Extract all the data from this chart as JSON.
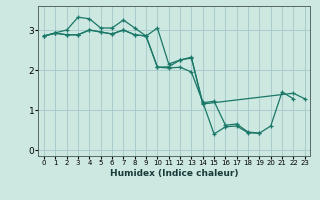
{
  "xlabel": "Humidex (Indice chaleur)",
  "bg_color": "#cce8e0",
  "grid_color": "#aacccc",
  "line_color": "#1a7868",
  "xlim": [
    -0.5,
    23.5
  ],
  "ylim": [
    -0.15,
    3.6
  ],
  "yticks": [
    0,
    1,
    2,
    3
  ],
  "xticks": [
    0,
    1,
    2,
    3,
    4,
    5,
    6,
    7,
    8,
    9,
    10,
    11,
    12,
    13,
    14,
    15,
    16,
    17,
    18,
    19,
    20,
    21,
    22,
    23
  ],
  "lines": [
    {
      "x": [
        0,
        1,
        2,
        3,
        4,
        5,
        6,
        7,
        8,
        9,
        10,
        11,
        12,
        13,
        14,
        15,
        16,
        17,
        18,
        19,
        20,
        21,
        22
      ],
      "y": [
        2.85,
        2.93,
        3.0,
        3.32,
        3.28,
        3.05,
        3.05,
        3.25,
        3.05,
        2.85,
        2.07,
        2.08,
        2.25,
        2.3,
        1.18,
        1.22,
        0.62,
        0.65,
        0.45,
        0.42,
        0.6,
        1.45,
        1.28
      ]
    },
    {
      "x": [
        0,
        1,
        2,
        3,
        4,
        5,
        6,
        7,
        8,
        9,
        10,
        11,
        12,
        13,
        14,
        15,
        16,
        17,
        18,
        19
      ],
      "y": [
        2.85,
        2.92,
        2.88,
        2.88,
        3.0,
        2.95,
        2.9,
        3.0,
        2.88,
        2.85,
        2.07,
        2.05,
        2.07,
        1.95,
        1.2,
        0.4,
        0.58,
        0.6,
        0.43,
        0.42
      ]
    },
    {
      "x": [
        0,
        1,
        2,
        3,
        4,
        5,
        6,
        7,
        8,
        9,
        10,
        11,
        12,
        13,
        14,
        22,
        23
      ],
      "y": [
        2.85,
        2.92,
        2.88,
        2.88,
        3.0,
        2.95,
        2.9,
        3.0,
        2.88,
        2.85,
        3.05,
        2.15,
        2.25,
        2.32,
        1.15,
        1.42,
        1.28
      ]
    }
  ]
}
